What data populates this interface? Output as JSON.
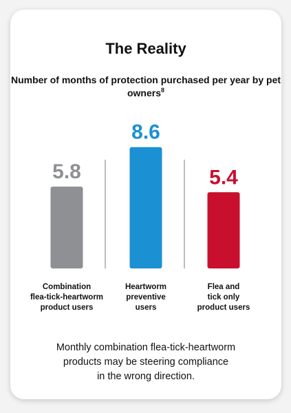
{
  "card": {
    "title": "The Reality",
    "subtitle": "Number of months of protection purchased per year by pet owners",
    "subtitle_ref": "8",
    "caption_lines": [
      "Monthly combination flea-tick-heartworm",
      "products may be steering compliance",
      "in the wrong direction."
    ]
  },
  "chart_data": {
    "type": "bar",
    "categories": [
      [
        "Combination",
        "flea-tick-heartworm",
        "product users"
      ],
      [
        "Heartworm",
        "preventive",
        "users"
      ],
      [
        "Flea and",
        "tick only",
        "product users"
      ]
    ],
    "values": [
      5.8,
      8.6,
      5.4
    ],
    "value_labels": [
      "5.8",
      "8.6",
      "5.4"
    ],
    "colors": [
      "#8e9094",
      "#1b90d3",
      "#c8102e"
    ],
    "grid": false,
    "legend": "none"
  }
}
